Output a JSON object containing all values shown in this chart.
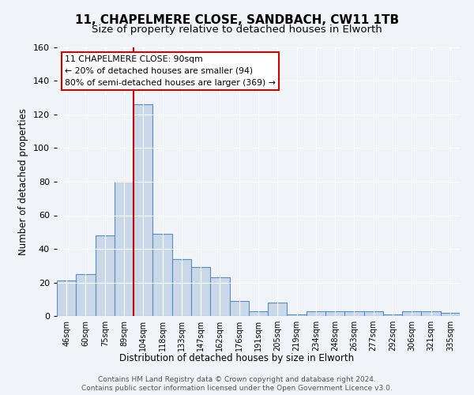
{
  "title_line1": "11, CHAPELMERE CLOSE, SANDBACH, CW11 1TB",
  "title_line2": "Size of property relative to detached houses in Elworth",
  "xlabel": "Distribution of detached houses by size in Elworth",
  "ylabel": "Number of detached properties",
  "categories": [
    "46sqm",
    "60sqm",
    "75sqm",
    "89sqm",
    "104sqm",
    "118sqm",
    "133sqm",
    "147sqm",
    "162sqm",
    "176sqm",
    "191sqm",
    "205sqm",
    "219sqm",
    "234sqm",
    "248sqm",
    "263sqm",
    "277sqm",
    "292sqm",
    "306sqm",
    "321sqm",
    "335sqm"
  ],
  "values": [
    21,
    25,
    48,
    80,
    126,
    49,
    34,
    29,
    23,
    9,
    3,
    8,
    1,
    3,
    3,
    3,
    3,
    1,
    3,
    3,
    2
  ],
  "bar_color": "#c8d8e8",
  "bar_edge_color": "#5a8abf",
  "vline_x": 3.5,
  "vline_color": "#cc0000",
  "annotation_text": "11 CHAPELMERE CLOSE: 90sqm\n← 20% of detached houses are smaller (94)\n80% of semi-detached houses are larger (369) →",
  "annotation_box_color": "white",
  "annotation_box_edge": "#cc0000",
  "ylim": [
    0,
    160
  ],
  "yticks": [
    0,
    20,
    40,
    60,
    80,
    100,
    120,
    140,
    160
  ],
  "footer_line1": "Contains HM Land Registry data © Crown copyright and database right 2024.",
  "footer_line2": "Contains public sector information licensed under the Open Government Licence v3.0.",
  "bg_color": "#f0f4f8",
  "plot_bg_color": "#f0f4f8"
}
